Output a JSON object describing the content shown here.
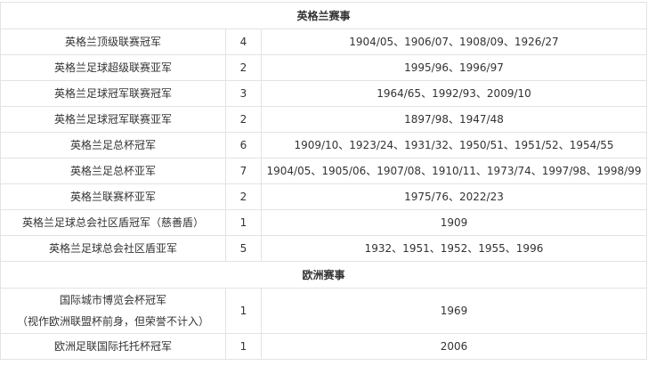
{
  "sections": [
    {
      "title": "英格兰赛事",
      "rows": [
        {
          "name": "英格兰顶级联赛冠军",
          "count": "4",
          "seasons": "1904/05、1906/07、1908/09、1926/27"
        },
        {
          "name": "英格兰足球超级联赛亚军",
          "count": "2",
          "seasons": "1995/96、1996/97"
        },
        {
          "name": "英格兰足球冠军联赛冠军",
          "count": "3",
          "seasons": "1964/65、1992/93、2009/10"
        },
        {
          "name": "英格兰足球冠军联赛亚军",
          "count": "2",
          "seasons": "1897/98、1947/48"
        },
        {
          "name": "英格兰足总杯冠军",
          "count": "6",
          "seasons": "1909/10、1923/24、1931/32、1950/51、1951/52、1954/55"
        },
        {
          "name": "英格兰足总杯亚军",
          "count": "7",
          "seasons": "1904/05、1905/06、1907/08、1910/11、1973/74、1997/98、1998/99"
        },
        {
          "name": "英格兰联赛杯亚军",
          "count": "2",
          "seasons": "1975/76、2022/23"
        },
        {
          "name": "英格兰足球总会社区盾冠军（慈善盾）",
          "count": "1",
          "seasons": "1909"
        },
        {
          "name": "英格兰足球总会社区盾亚军",
          "count": "5",
          "seasons": "1932、1951、1952、1955、1996"
        }
      ]
    },
    {
      "title": "欧洲赛事",
      "rows": [
        {
          "name": "国际城市博览会杯冠军",
          "note": "（视作欧洲联盟杯前身，但荣誉不计入）",
          "count": "1",
          "seasons": "1969"
        },
        {
          "name": "欧洲足联国际托托杯冠军",
          "count": "1",
          "seasons": "2006"
        }
      ]
    }
  ]
}
